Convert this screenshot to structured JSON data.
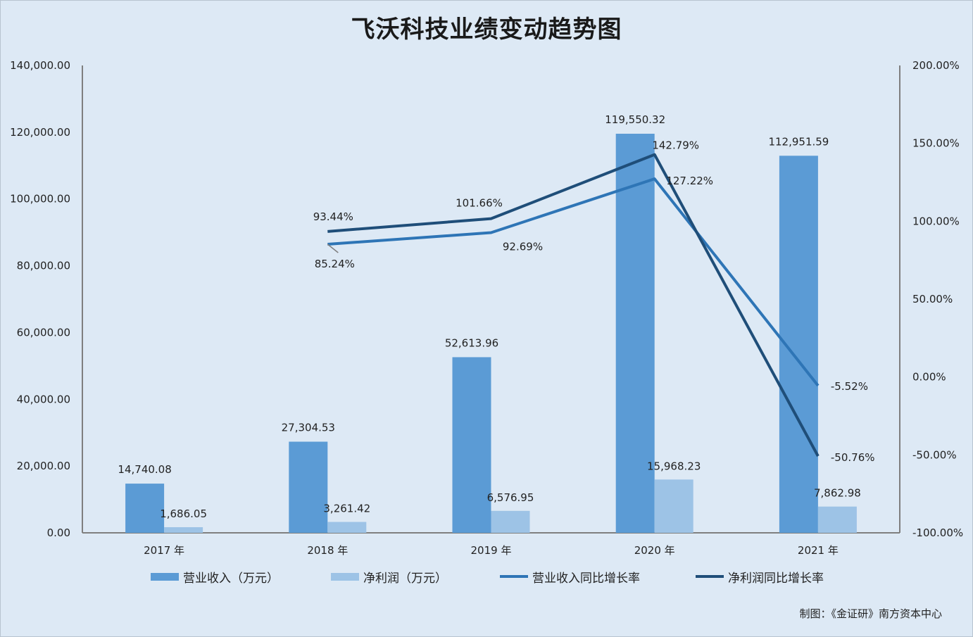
{
  "colors": {
    "background": "#dde9f5",
    "revenue_bar": "#5b9bd5",
    "profit_bar": "#9dc3e6",
    "revenue_growth_line": "#2e75b6",
    "profit_growth_line": "#1f4e79",
    "axis": "#7f7f7f"
  },
  "chart_data": {
    "type": "bar",
    "title": "飞沃科技业绩变动趋势图",
    "categories": [
      "2017 年",
      "2018 年",
      "2019 年",
      "2020 年",
      "2021 年"
    ],
    "ylim": [
      0,
      140000
    ],
    "y2lim": [
      -100,
      200
    ],
    "y_ticks": [
      "0.00",
      "20,000.00",
      "40,000.00",
      "60,000.00",
      "80,000.00",
      "100,000.00",
      "120,000.00",
      "140,000.00"
    ],
    "y2_ticks": [
      "-100.00%",
      "-50.00%",
      "0.00%",
      "50.00%",
      "100.00%",
      "150.00%",
      "200.00%"
    ],
    "legend_position": "bottom",
    "grid": false,
    "series": [
      {
        "name": "营业收入（万元）",
        "kind": "bar",
        "axis": "left",
        "values": [
          14740.08,
          27304.53,
          52613.96,
          119550.32,
          112951.59
        ],
        "labels": [
          "14,740.08",
          "27,304.53",
          "52,613.96",
          "119,550.32",
          "112,951.59"
        ]
      },
      {
        "name": "净利润（万元）",
        "kind": "bar",
        "axis": "left",
        "values": [
          1686.05,
          3261.42,
          6576.95,
          15968.23,
          7862.98
        ],
        "labels": [
          "1,686.05",
          "3,261.42",
          "6,576.95",
          "15,968.23",
          "7,862.98"
        ]
      },
      {
        "name": "营业收入同比增长率",
        "kind": "line",
        "axis": "right",
        "values": [
          null,
          85.24,
          92.69,
          127.22,
          -5.52
        ],
        "labels": [
          "",
          "85.24%",
          "92.69%",
          "127.22%",
          "-5.52%"
        ]
      },
      {
        "name": "净利润同比增长率",
        "kind": "line",
        "axis": "right",
        "values": [
          null,
          93.44,
          101.66,
          142.79,
          -50.76
        ],
        "labels": [
          "",
          "93.44%",
          "101.66%",
          "142.79%",
          "-50.76%"
        ]
      }
    ]
  },
  "source_note": "制图：《金证研》南方资本中心"
}
